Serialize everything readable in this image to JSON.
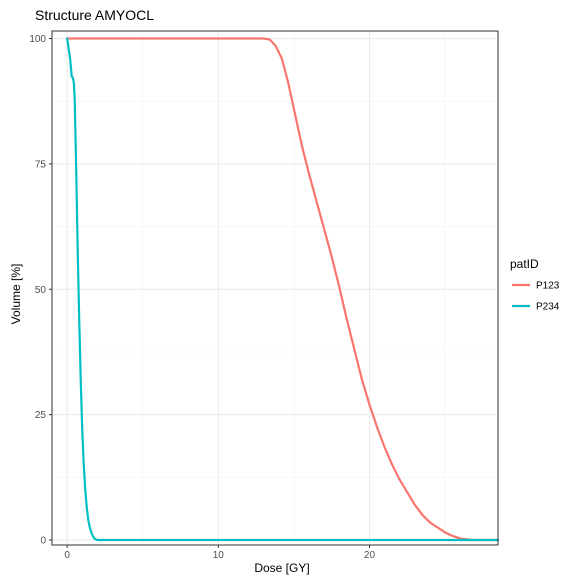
{
  "chart_data": {
    "type": "line",
    "title": "Structure AMYOCL",
    "xlabel": "Dose [GY]",
    "ylabel": "Volume [%]",
    "xlim": [
      -1.0,
      28.5
    ],
    "ylim": [
      -1.0,
      101.5
    ],
    "xticks": [
      0,
      10,
      20
    ],
    "yticks": [
      0,
      25,
      50,
      75,
      100
    ],
    "grid": true,
    "legend": {
      "title": "patID",
      "position": "right"
    },
    "series": [
      {
        "name": "P123",
        "color": "#F8766D",
        "x": [
          0,
          5,
          10,
          13.0,
          13.4,
          13.8,
          14.2,
          14.6,
          15.0,
          15.5,
          16.0,
          16.5,
          17.0,
          17.5,
          18.0,
          18.5,
          19.0,
          19.5,
          20.0,
          20.5,
          21.0,
          21.5,
          22.0,
          22.5,
          23.0,
          23.5,
          24.0,
          24.5,
          25.0,
          25.5,
          26.0,
          26.5,
          26.8,
          27.0,
          28.5
        ],
        "y": [
          100,
          100,
          100,
          100,
          99.8,
          98.5,
          96.0,
          91.5,
          86.0,
          79.0,
          73.0,
          67.5,
          62.0,
          56.5,
          50.5,
          44.0,
          38.0,
          32.0,
          27.0,
          22.5,
          18.5,
          15.0,
          12.0,
          9.5,
          7.0,
          5.0,
          3.5,
          2.5,
          1.5,
          0.8,
          0.3,
          0.1,
          0,
          0,
          0
        ]
      },
      {
        "name": "P234",
        "color": "#00BFC4",
        "x": [
          0.0,
          0.2,
          0.3,
          0.4,
          0.45,
          0.5,
          0.6,
          0.7,
          0.8,
          0.9,
          1.0,
          1.1,
          1.2,
          1.3,
          1.4,
          1.5,
          1.6,
          1.7,
          1.8,
          1.9,
          2.0,
          5.0,
          10.0,
          15.0,
          20.0,
          25.0,
          28.5
        ],
        "y": [
          100,
          96.0,
          92.5,
          92.0,
          91.0,
          88.0,
          74.0,
          58.0,
          44.0,
          32.0,
          22.0,
          15.0,
          10.0,
          6.5,
          4.0,
          2.5,
          1.5,
          0.8,
          0.3,
          0.1,
          0,
          0,
          0,
          0,
          0,
          0,
          0
        ]
      }
    ]
  }
}
